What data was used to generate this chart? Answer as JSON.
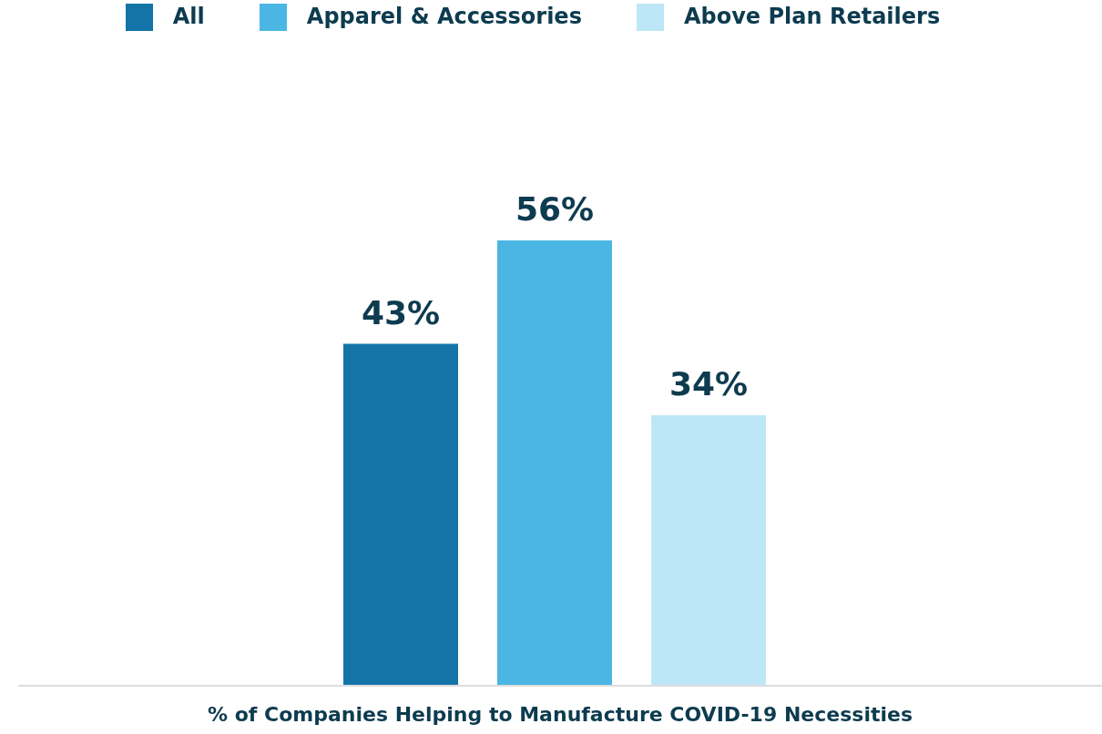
{
  "chart_data": {
    "type": "bar",
    "xlabel": "% of Companies Helping to Manufacture COVID-19 Necessities",
    "categories": [
      null,
      null,
      null
    ],
    "stacked": true,
    "series": [
      {
        "name": "All",
        "color": "#1474a8",
        "values": [
          43,
          null,
          null
        ],
        "value_labels": [
          "43%",
          null,
          null
        ]
      },
      {
        "name": "Apparel & Accessories",
        "color": "#4bb6e4",
        "values": [
          null,
          56,
          null
        ],
        "value_labels": [
          null,
          "56%",
          null
        ]
      },
      {
        "name": "Above Plan Retailers",
        "color": "#bde7f6",
        "values": [
          null,
          null,
          34
        ],
        "value_labels": [
          null,
          null,
          "34%"
        ]
      }
    ],
    "legend": "top",
    "grid": false
  }
}
